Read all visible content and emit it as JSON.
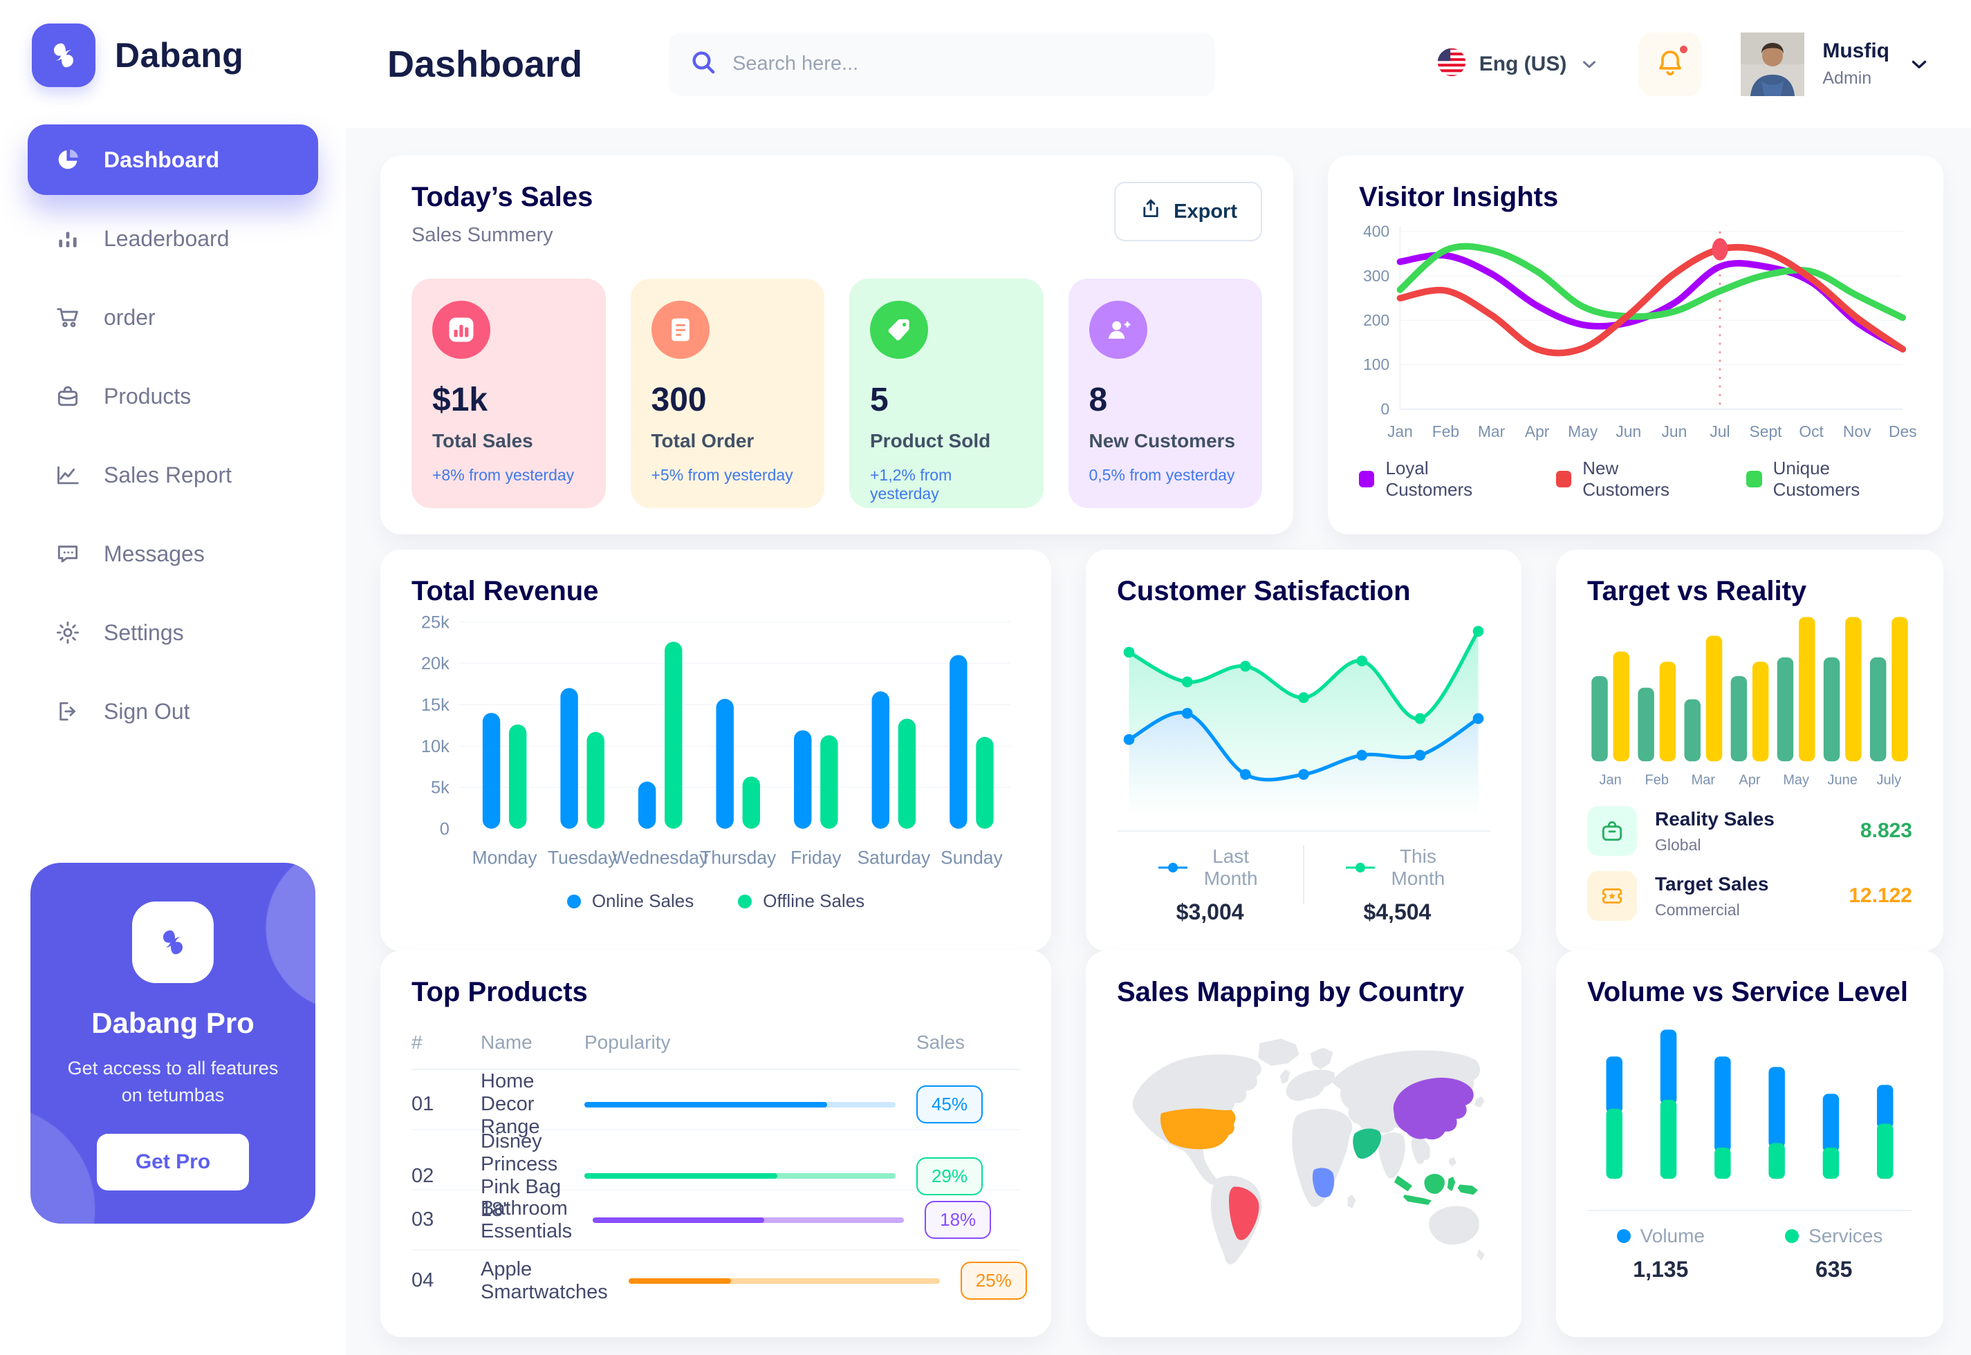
{
  "app": {
    "brand": "Dabang",
    "page_title": "Dashboard"
  },
  "header": {
    "search_placeholder": "Search here...",
    "language": "Eng (US)",
    "user": {
      "name": "Musfiq",
      "role": "Admin"
    }
  },
  "sidebar": {
    "items": [
      {
        "label": "Dashboard",
        "icon": "pie-chart-icon",
        "active": true
      },
      {
        "label": "Leaderboard",
        "icon": "bar-chart-icon",
        "active": false
      },
      {
        "label": "order",
        "icon": "cart-icon",
        "active": false
      },
      {
        "label": "Products",
        "icon": "bag-icon",
        "active": false
      },
      {
        "label": "Sales Report",
        "icon": "line-chart-icon",
        "active": false
      },
      {
        "label": "Messages",
        "icon": "message-icon",
        "active": false
      },
      {
        "label": "Settings",
        "icon": "gear-icon",
        "active": false
      },
      {
        "label": "Sign Out",
        "icon": "sign-out-icon",
        "active": false
      }
    ],
    "pro_card": {
      "title": "Dabang Pro",
      "subtitle": "Get access to all features on tetumbas",
      "button": "Get Pro"
    }
  },
  "todays_sales": {
    "title": "Today’s Sales",
    "subtitle": "Sales Summery",
    "export_label": "Export",
    "cards": [
      {
        "value": "$1k",
        "label": "Total Sales",
        "delta": "+8% from yesterday",
        "bg": "#FFE2E5",
        "icon_bg": "#FA5A7D",
        "icon": "sales-chart-icon"
      },
      {
        "value": "300",
        "label": "Total Order",
        "delta": "+5% from yesterday",
        "bg": "#FFF4DE",
        "icon_bg": "#FF947A",
        "icon": "order-doc-icon"
      },
      {
        "value": "5",
        "label": "Product Sold",
        "delta": "+1,2% from yesterday",
        "bg": "#DCFCE7",
        "icon_bg": "#3CD856",
        "icon": "tag-icon"
      },
      {
        "value": "8",
        "label": "New Customers",
        "delta": "0,5% from yesterday",
        "bg": "#F3E8FF",
        "icon_bg": "#BF83FF",
        "icon": "user-plus-icon"
      }
    ]
  },
  "visitor_insights": {
    "title": "Visitor Insights",
    "chart_data": {
      "type": "line",
      "x": [
        "Jan",
        "Feb",
        "Mar",
        "Apr",
        "May",
        "Jun",
        "Jun",
        "Jul",
        "Sept",
        "Oct",
        "Nov",
        "Des"
      ],
      "ylim": [
        0,
        400
      ],
      "yticks": [
        0,
        100,
        200,
        300,
        400
      ],
      "series": [
        {
          "name": "Loyal Customers",
          "color": "#A700FF",
          "values": [
            332,
            346,
            305,
            233,
            190,
            195,
            239,
            321,
            321,
            286,
            195,
            135
          ]
        },
        {
          "name": "New Customers",
          "color": "#EF4444",
          "values": [
            250,
            267,
            212,
            135,
            137,
            212,
            305,
            360,
            354,
            294,
            206,
            135
          ]
        },
        {
          "name": "Unique Customers",
          "color": "#3CD856",
          "values": [
            269,
            358,
            358,
            310,
            231,
            209,
            220,
            266,
            302,
            310,
            256,
            206
          ]
        }
      ],
      "highlight": {
        "x_index": 7,
        "series": "New Customers",
        "value": 360
      }
    }
  },
  "total_revenue": {
    "title": "Total Revenue",
    "chart_data": {
      "type": "bar",
      "categories": [
        "Monday",
        "Tuesday",
        "Wednesday",
        "Thursday",
        "Friday",
        "Saturday",
        "Sunday"
      ],
      "ymax": 25000,
      "ytick_labels": [
        "0",
        "5k",
        "10k",
        "15k",
        "20k",
        "25k"
      ],
      "series": [
        {
          "name": "Online Sales",
          "color": "#0095FF",
          "values": [
            14000,
            17000,
            5700,
            15700,
            11900,
            16600,
            21000
          ]
        },
        {
          "name": "Offline Sales",
          "color": "#00E096",
          "values": [
            12600,
            11700,
            22600,
            6300,
            11300,
            13300,
            11100
          ]
        }
      ]
    }
  },
  "customer_satisfaction": {
    "title": "Customer Satisfaction",
    "chart_data": {
      "type": "area",
      "series": [
        {
          "name": "Last Month",
          "total": "$3,004",
          "color": "#0095FF",
          "values": [
            37,
            52,
            17,
            17,
            28,
            28,
            49
          ]
        },
        {
          "name": "This Month",
          "total": "$4,504",
          "color": "#00E096",
          "values": [
            87,
            70,
            79,
            61,
            82,
            49,
            99
          ]
        }
      ]
    }
  },
  "target_vs_reality": {
    "title": "Target vs Reality",
    "chart_data": {
      "type": "bar",
      "categories": [
        "Jan",
        "Feb",
        "Mar",
        "Apr",
        "May",
        "June",
        "July"
      ],
      "series": [
        {
          "name": "Reality Sales",
          "color": "#4AB58E",
          "values": [
            59,
            51,
            43,
            59,
            72,
            72,
            72
          ]
        },
        {
          "name": "Target Sales",
          "color": "#FFCF00",
          "values": [
            76,
            69,
            87,
            69,
            100,
            100,
            100
          ]
        }
      ]
    },
    "stats": [
      {
        "label": "Reality Sales",
        "sublabel": "Global",
        "value": "8.823",
        "value_color": "#27AE60",
        "icon": "shopping-bag-icon",
        "icon_bg": "#E2FFF3"
      },
      {
        "label": "Target Sales",
        "sublabel": "Commercial",
        "value": "12.122",
        "value_color": "#FFA412",
        "icon": "ticket-star-icon",
        "icon_bg": "#FFF4DE"
      }
    ]
  },
  "top_products": {
    "title": "Top Products",
    "columns": [
      "#",
      "Name",
      "Popularity",
      "Sales"
    ],
    "rows": [
      {
        "num": "01",
        "name": "Home Decor Range",
        "popularity": 78,
        "sales": "45%",
        "color": "#0095FF",
        "track": "#CDE7FF",
        "badge_bg": "#F0F9FF"
      },
      {
        "num": "02",
        "name": "Disney Princess Pink Bag 18'",
        "popularity": 62,
        "sales": "29%",
        "color": "#00E096",
        "track": "#8CF0C7",
        "badge_bg": "#F1FDF7"
      },
      {
        "num": "03",
        "name": "Bathroom Essentials",
        "popularity": 55,
        "sales": "18%",
        "color": "#884DFF",
        "track": "#C9A9FA",
        "badge_bg": "#F9F5FF"
      },
      {
        "num": "04",
        "name": "Apple Smartwatches",
        "popularity": 33,
        "sales": "25%",
        "color": "#FF8F0D",
        "track": "#FFD79F",
        "badge_bg": "#FFF6E9"
      }
    ]
  },
  "sales_map": {
    "title": "Sales Mapping by Country",
    "countries": [
      {
        "key": "usa",
        "name": "United States",
        "color": "#FFA412"
      },
      {
        "key": "brazil",
        "name": "Brazil",
        "color": "#F64E60"
      },
      {
        "key": "congo",
        "name": "DR Congo",
        "color": "#6A8EFF"
      },
      {
        "key": "saudi",
        "name": "Saudi Arabia",
        "color": "#1FBF86"
      },
      {
        "key": "china",
        "name": "China",
        "color": "#9B51E0"
      },
      {
        "key": "indonesia",
        "name": "Indonesia",
        "color": "#29C76F"
      }
    ]
  },
  "volume_service": {
    "title": "Volume vs Service Level",
    "chart_data": {
      "type": "stacked-bar",
      "series": [
        {
          "name": "Volume",
          "total": "1,135",
          "color": "#0095FF",
          "values": [
            35,
            47,
            61,
            51,
            36,
            26
          ]
        },
        {
          "name": "Services",
          "total": "635",
          "color": "#00E096",
          "values": [
            47,
            53,
            21,
            24,
            21,
            37
          ]
        }
      ]
    }
  }
}
